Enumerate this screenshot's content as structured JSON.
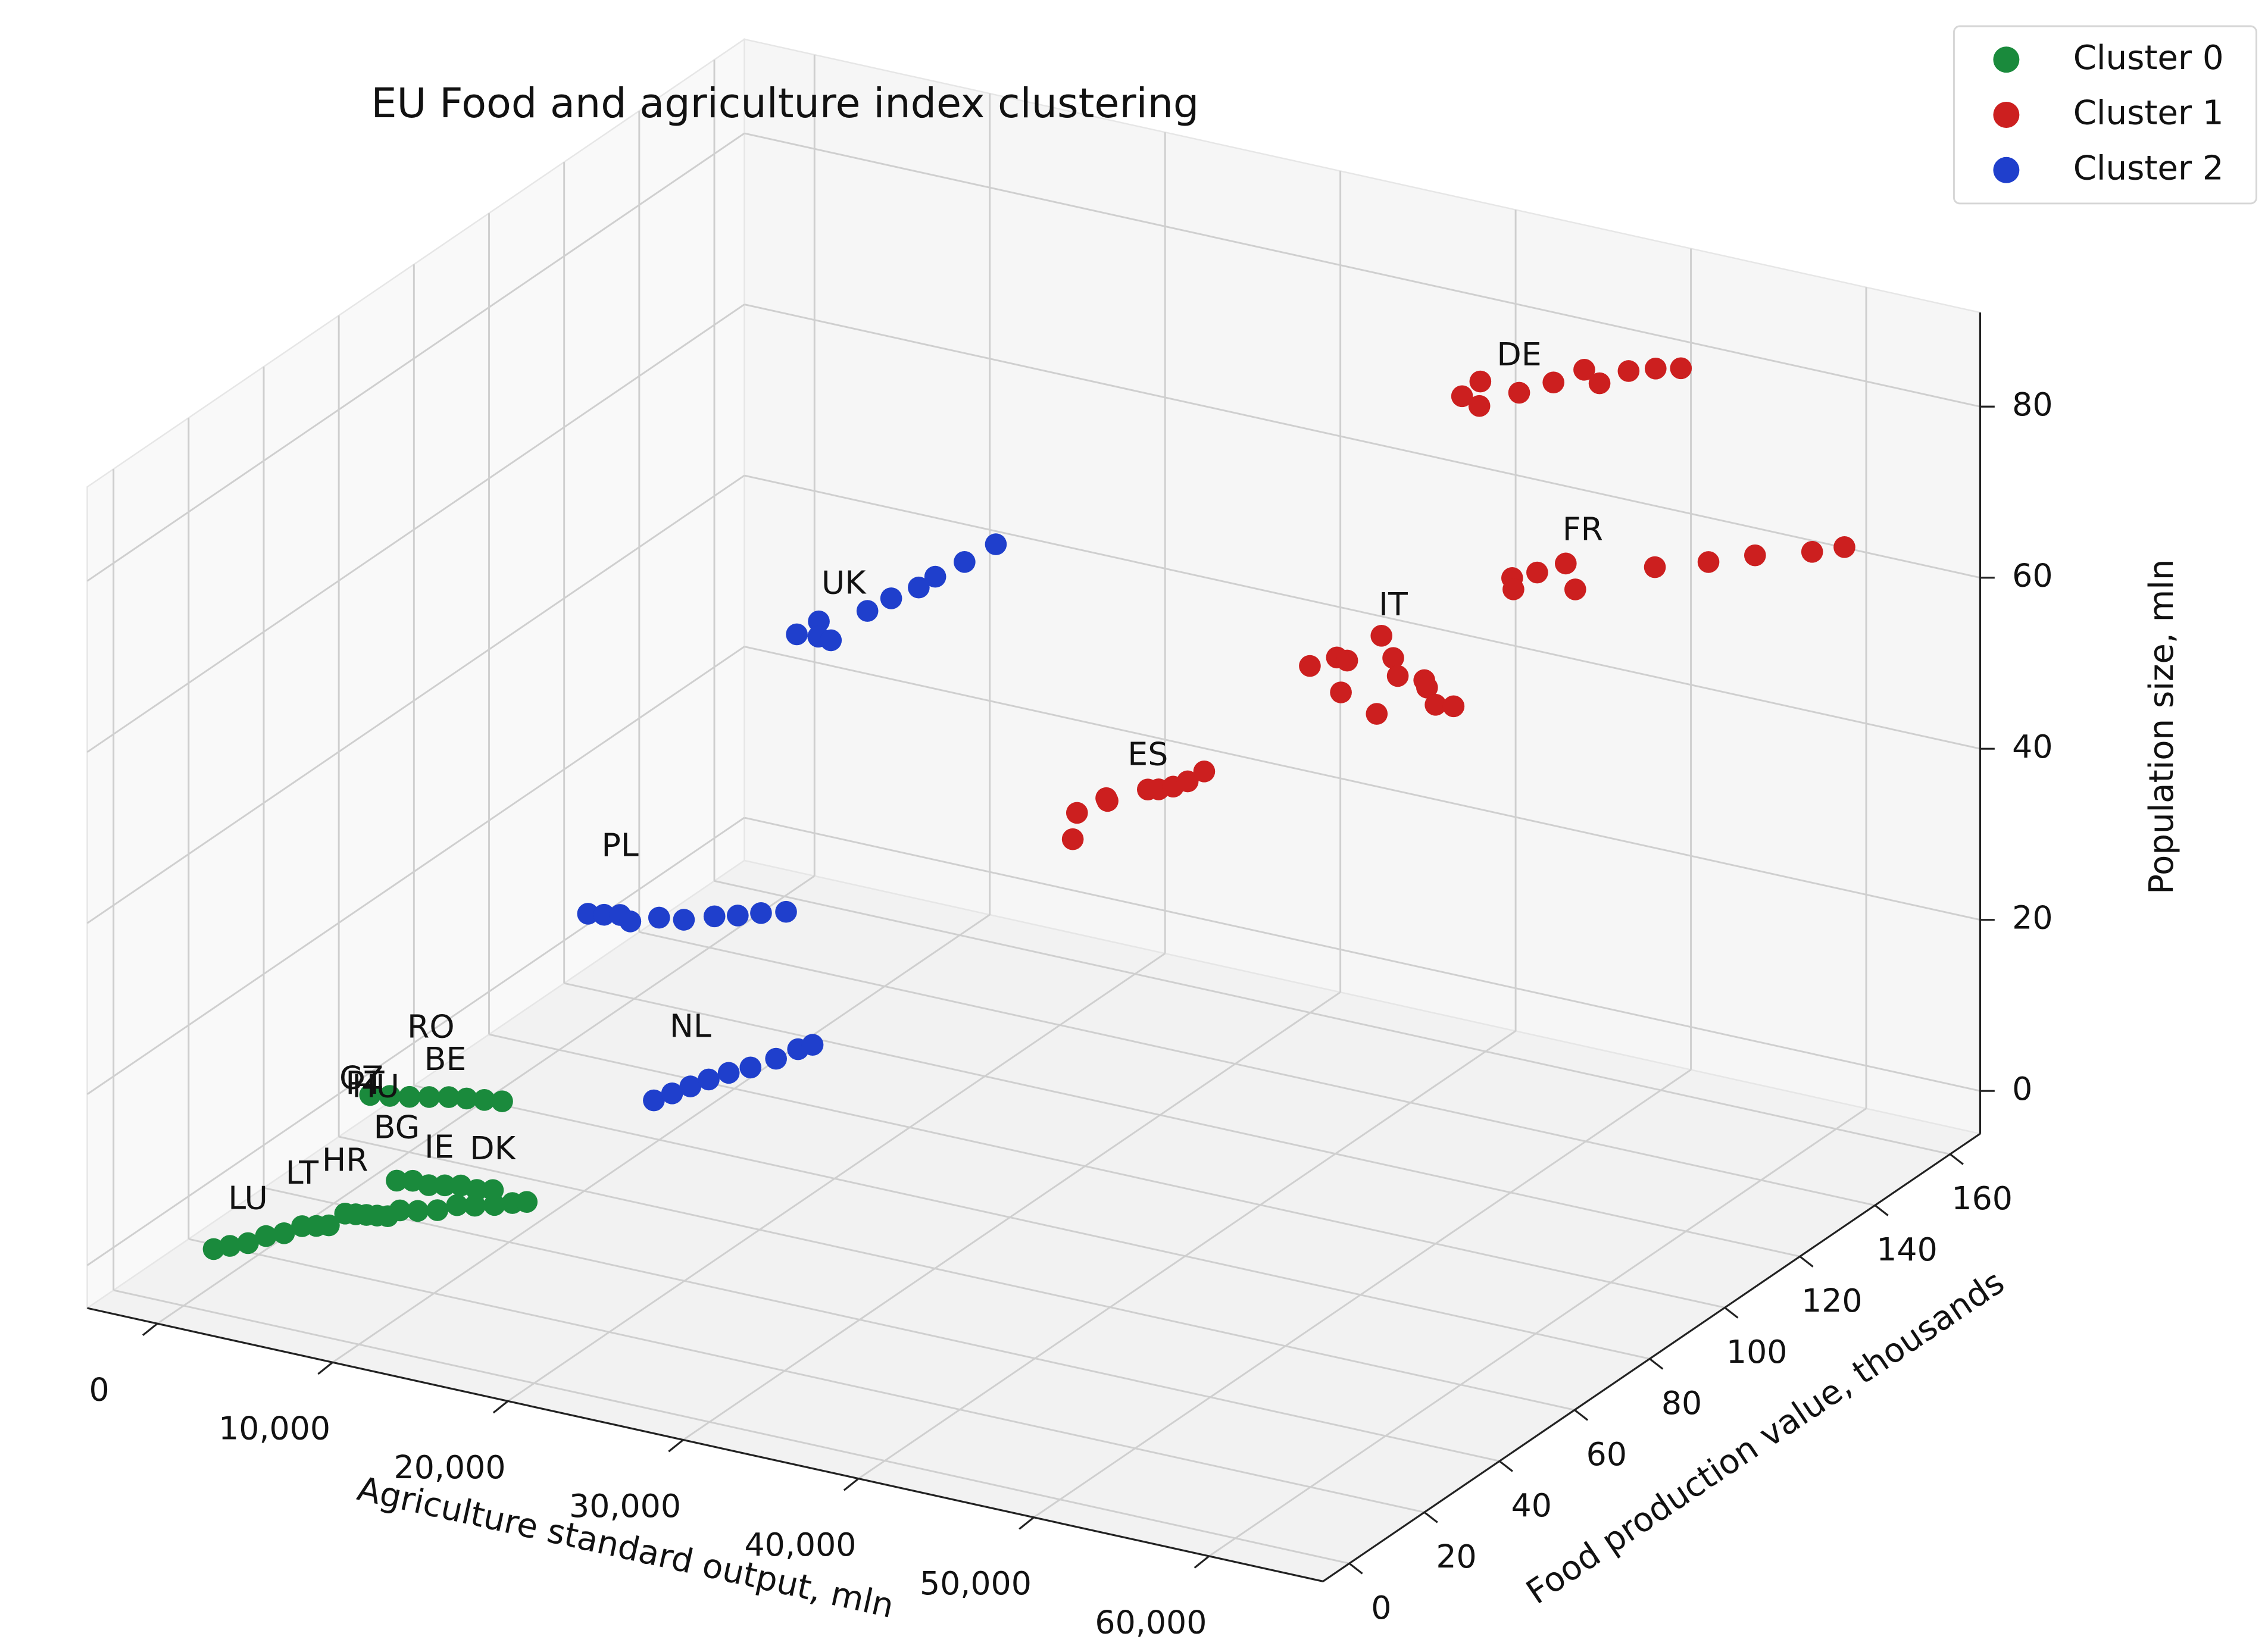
{
  "chart_data": {
    "type": "scatter3d",
    "title": "EU Food and agriculture index clustering",
    "xlabel": "Agriculture standard output, mln",
    "ylabel": "Food production value, thousands",
    "zlabel": "Population size, mln",
    "xlim": [
      -4000,
      66500
    ],
    "ylim": [
      -7,
      168
    ],
    "zlim": [
      -5,
      91
    ],
    "xticks": [
      0,
      {
        "value": 10000,
        "label": "10,000"
      },
      {
        "value": 20000,
        "label": "20,000"
      },
      {
        "value": 30000,
        "label": "30,000"
      },
      {
        "value": 40000,
        "label": "40,000"
      },
      {
        "value": 50000,
        "label": "50,000"
      },
      {
        "value": 60000,
        "label": "60,000"
      }
    ],
    "yticks": [
      0,
      20,
      40,
      60,
      80,
      100,
      120,
      140,
      160
    ],
    "zticks": [
      0,
      20,
      40,
      60,
      80
    ],
    "grid": true,
    "legend": "upper right",
    "series": [
      {
        "name": "Cluster 0",
        "color": "#1a8a3c",
        "x": [
          1500,
          2000,
          2600,
          3200,
          3800,
          4400,
          5000,
          5500,
          6000,
          6500,
          7000,
          7500,
          8000,
          8300,
          9000,
          9700,
          10400,
          11100,
          11800,
          12500,
          8700,
          9500,
          10300,
          11100,
          11900,
          12700,
          13400,
          14000,
          8500,
          9300,
          10100,
          10900,
          11700,
          12500,
          13300,
          14100
        ],
        "y": [
          1,
          3,
          5,
          7,
          9,
          11,
          12,
          13,
          15,
          15.5,
          16,
          16.5,
          17,
          18,
          19,
          20,
          21,
          22,
          23,
          24,
          17,
          18,
          19.5,
          21,
          22,
          23.5,
          25,
          26,
          10,
          11.5,
          13,
          14.5,
          16,
          17,
          18,
          19
        ],
        "z": [
          2,
          2,
          2,
          2.5,
          2.5,
          3,
          3,
          3,
          4,
          4,
          4,
          4,
          4,
          8,
          8,
          7.5,
          7.5,
          7.5,
          7,
          7,
          5,
          5,
          5,
          5.5,
          5.5,
          5.5,
          5.6,
          5.7,
          20.5,
          20.3,
          20.1,
          20,
          19.9,
          19.8,
          19.7,
          19.6
        ]
      },
      {
        "name": "Cluster 1",
        "color": "#cc1f1f",
        "x": [
          43800,
          44200,
          45000,
          46200,
          47300,
          48200,
          49500,
          50300,
          51200,
          52000,
          48800,
          49300,
          49800,
          51000,
          52400,
          54800,
          57000,
          58800,
          61200,
          62400,
          42400,
          43300,
          44100,
          44600,
          45200,
          46300,
          47200,
          47500,
          48500,
          49300,
          50000,
          50600,
          34900,
          35300,
          35500,
          36000,
          36800,
          37200,
          37600,
          38000,
          38300
        ],
        "y": [
          136,
          139,
          135,
          140,
          144,
          148,
          146,
          150,
          153,
          156,
          126,
          124,
          128,
          130,
          126,
          136,
          140,
          144,
          148,
          151,
          102,
          105,
          104,
          100,
          108,
          106,
          103,
          96,
          104,
          101,
          100,
          102,
          75,
          72,
          80,
          78,
          85,
          86,
          88,
          90,
          93
        ],
        "z": [
          80.5,
          81.5,
          80.2,
          80.8,
          81.3,
          82,
          81.6,
          82.2,
          82,
          81.5,
          64.5,
          64,
          65,
          66,
          64.8,
          65.5,
          65.9,
          66.3,
          66.6,
          66.8,
          58.5,
          59,
          59.3,
          57,
          61.5,
          60,
          59.2,
          57,
          59,
          59.4,
          58,
          57.5,
          46,
          44,
          46.5,
          47,
          46.6,
          46.5,
          46.4,
          46.6,
          47
        ]
      },
      {
        "name": "Cluster 2",
        "color": "#1f3fcc",
        "x": [
          20200,
          20600,
          21000,
          21500,
          22300,
          22800,
          23300,
          23600,
          24200,
          24700,
          16000,
          16700,
          17400,
          18200,
          19200,
          20400,
          21500,
          22400,
          23300,
          24300,
          18900,
          19300,
          19700,
          20100,
          20600,
          21200,
          21800,
          22200,
          22600
        ],
        "y": [
          69,
          73,
          71,
          72,
          78,
          82,
          87,
          90,
          95,
          101,
          33,
          34,
          35,
          34,
          37,
          38,
          41,
          43,
          45,
          47,
          37,
          40,
          43,
          46,
          49,
          52,
          56,
          60,
          62
        ],
        "z": [
          62,
          62.5,
          61.5,
          61,
          63,
          63.5,
          63.5,
          64,
          64.5,
          65,
          38.2,
          38.1,
          38.1,
          38,
          38,
          38,
          38,
          37.9,
          38,
          38,
          16.5,
          16.6,
          16.7,
          16.8,
          16.9,
          16.9,
          17,
          17.1,
          17.2
        ]
      }
    ],
    "annotations": [
      {
        "text": "DE",
        "x": 46200,
        "y": 140,
        "z": 85
      },
      {
        "text": "FR",
        "x": 52400,
        "y": 128,
        "z": 71
      },
      {
        "text": "IT",
        "x": 46300,
        "y": 106,
        "z": 66
      },
      {
        "text": "ES",
        "x": 36800,
        "y": 85,
        "z": 50.5
      },
      {
        "text": "UK",
        "x": 21800,
        "y": 74,
        "z": 67
      },
      {
        "text": "PL",
        "x": 17400,
        "y": 35,
        "z": 46
      },
      {
        "text": "NL",
        "x": 19700,
        "y": 43,
        "z": 23.5
      },
      {
        "text": "RO",
        "x": 11000,
        "y": 14.5,
        "z": 28
      },
      {
        "text": "BE",
        "x": 11500,
        "y": 16,
        "z": 24
      },
      {
        "text": "CZ",
        "x": 8000,
        "y": 10,
        "z": 22
      },
      {
        "text": "PT",
        "x": 8200,
        "y": 10,
        "z": 21.5
      },
      {
        "text": "HU",
        "x": 8600,
        "y": 11,
        "z": 21
      },
      {
        "text": "DK",
        "x": 12700,
        "y": 23,
        "z": 12
      },
      {
        "text": "IE",
        "x": 10300,
        "y": 20,
        "z": 12
      },
      {
        "text": "BG",
        "x": 8300,
        "y": 18,
        "z": 14
      },
      {
        "text": "HR",
        "x": 6000,
        "y": 15,
        "z": 10
      },
      {
        "text": "LT",
        "x": 4400,
        "y": 11,
        "z": 9
      },
      {
        "text": "LU",
        "x": 2600,
        "y": 5,
        "z": 7
      }
    ]
  }
}
